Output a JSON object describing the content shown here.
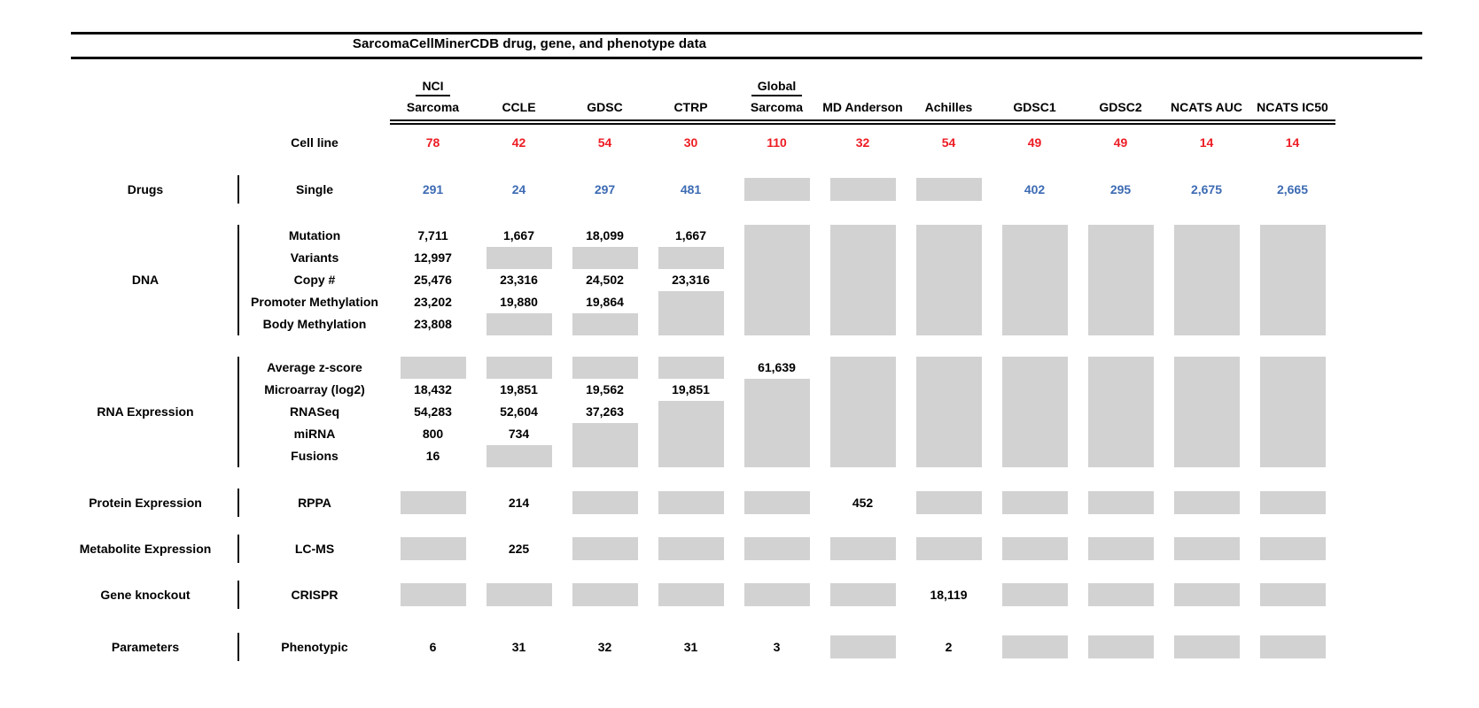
{
  "colors": {
    "cell_line_count": "#ed1c24",
    "drug_count": "#3d6bb3",
    "missing_box": "#d2d2d2",
    "rule": "#0a0a0a"
  },
  "chart_data": {
    "type": "table",
    "title": "SarcomaCellMinerCDB drug, gene, and phenotype data",
    "cell_line_row_label": "Cell line",
    "columns": [
      {
        "group": "NCI",
        "name": "Sarcoma",
        "cell_lines": "78"
      },
      {
        "group": "",
        "name": "CCLE",
        "cell_lines": "42"
      },
      {
        "group": "",
        "name": "GDSC",
        "cell_lines": "54"
      },
      {
        "group": "",
        "name": "CTRP",
        "cell_lines": "30"
      },
      {
        "group": "Global",
        "name": "Sarcoma",
        "cell_lines": "110"
      },
      {
        "group": "",
        "name": "MD Anderson",
        "cell_lines": "32"
      },
      {
        "group": "",
        "name": "Achilles",
        "cell_lines": "54"
      },
      {
        "group": "",
        "name": "GDSC1",
        "cell_lines": "49"
      },
      {
        "group": "",
        "name": "GDSC2",
        "cell_lines": "49"
      },
      {
        "group": "",
        "name": "NCATS AUC",
        "cell_lines": "14"
      },
      {
        "group": "",
        "name": "NCATS IC50",
        "cell_lines": "14"
      }
    ],
    "sections": [
      {
        "category": "Drugs",
        "rows": [
          {
            "label": "Single",
            "value_color": "blue",
            "values": [
              "291",
              "24",
              "297",
              "481",
              null,
              null,
              null,
              "402",
              "295",
              "2,675",
              "2,665"
            ]
          }
        ]
      },
      {
        "category": "DNA",
        "rows": [
          {
            "label": "Mutation",
            "values": [
              "7,711",
              "1,667",
              "18,099",
              "1,667",
              null,
              null,
              null,
              null,
              null,
              null,
              null
            ]
          },
          {
            "label": "Variants",
            "values": [
              "12,997",
              null,
              null,
              null,
              null,
              null,
              null,
              null,
              null,
              null,
              null
            ]
          },
          {
            "label": "Copy #",
            "values": [
              "25,476",
              "23,316",
              "24,502",
              "23,316",
              null,
              null,
              null,
              null,
              null,
              null,
              null
            ]
          },
          {
            "label": "Promoter Methylation",
            "values": [
              "23,202",
              "19,880",
              "19,864",
              null,
              null,
              null,
              null,
              null,
              null,
              null,
              null
            ]
          },
          {
            "label": "Body Methylation",
            "values": [
              "23,808",
              null,
              null,
              null,
              null,
              null,
              null,
              null,
              null,
              null,
              null
            ]
          }
        ]
      },
      {
        "category": "RNA Expression",
        "rows": [
          {
            "label": "Average z-score",
            "values": [
              null,
              null,
              null,
              null,
              "61,639",
              null,
              null,
              null,
              null,
              null,
              null
            ]
          },
          {
            "label": "Microarray (log2)",
            "values": [
              "18,432",
              "19,851",
              "19,562",
              "19,851",
              null,
              null,
              null,
              null,
              null,
              null,
              null
            ]
          },
          {
            "label": "RNASeq",
            "values": [
              "54,283",
              "52,604",
              "37,263",
              null,
              null,
              null,
              null,
              null,
              null,
              null,
              null
            ]
          },
          {
            "label": "miRNA",
            "values": [
              "800",
              "734",
              null,
              null,
              null,
              null,
              null,
              null,
              null,
              null,
              null
            ]
          },
          {
            "label": "Fusions",
            "values": [
              "16",
              null,
              null,
              null,
              null,
              null,
              null,
              null,
              null,
              null,
              null
            ]
          }
        ]
      },
      {
        "category": "Protein Expression",
        "rows": [
          {
            "label": "RPPA",
            "values": [
              null,
              "214",
              null,
              null,
              null,
              "452",
              null,
              null,
              null,
              null,
              null
            ]
          }
        ]
      },
      {
        "category": "Metabolite Expression",
        "rows": [
          {
            "label": "LC-MS",
            "values": [
              null,
              "225",
              null,
              null,
              null,
              null,
              null,
              null,
              null,
              null,
              null
            ]
          }
        ]
      },
      {
        "category": "Gene knockout",
        "rows": [
          {
            "label": "CRISPR",
            "values": [
              null,
              null,
              null,
              null,
              null,
              null,
              "18,119",
              null,
              null,
              null,
              null
            ]
          }
        ]
      },
      {
        "category": "Parameters",
        "rows": [
          {
            "label": "Phenotypic",
            "values": [
              "6",
              "31",
              "32",
              "31",
              "3",
              null,
              "2",
              null,
              null,
              null,
              null
            ]
          }
        ]
      }
    ]
  }
}
